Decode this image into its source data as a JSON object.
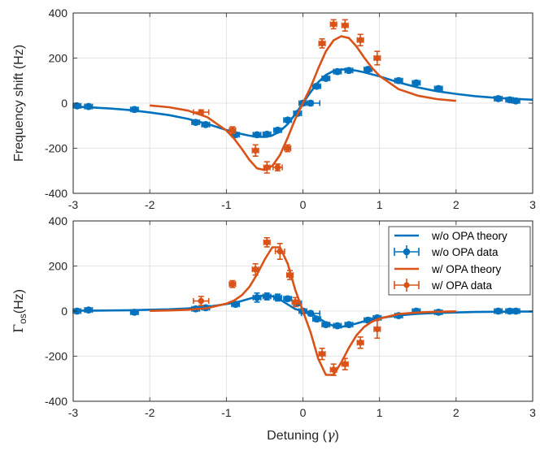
{
  "chart_data": [
    {
      "type": "scatter",
      "ylabel": "Frequency shift (Hz)",
      "xlabel": "",
      "xlim": [
        -3,
        3
      ],
      "ylim": [
        -400,
        400
      ],
      "xticks": [
        -3,
        -2,
        -1,
        0,
        1,
        2,
        3
      ],
      "yticks": [
        -400,
        -200,
        0,
        200,
        400
      ],
      "xtick_labels": [
        "-3",
        "-2",
        "-1",
        "0",
        "1",
        "2",
        "3"
      ],
      "ytick_labels": [
        "-400",
        "-200",
        "0",
        "200",
        "400"
      ],
      "grid": true,
      "series": [
        {
          "kind": "line",
          "color": "#0072BD",
          "x_range": [
            -3,
            3
          ],
          "x": [
            -3,
            -2.75,
            -2.5,
            -2.25,
            -2,
            -1.75,
            -1.5,
            -1.25,
            -1,
            -0.9,
            -0.8,
            -0.7,
            -0.6,
            -0.5,
            -0.4,
            -0.3,
            -0.2,
            -0.1,
            0,
            0.1,
            0.2,
            0.3,
            0.4,
            0.5,
            0.6,
            0.7,
            0.8,
            0.9,
            1,
            1.25,
            1.5,
            1.75,
            2,
            2.25,
            2.5,
            2.75,
            3
          ],
          "y": [
            -15,
            -19,
            -24,
            -31,
            -41,
            -53,
            -70,
            -92,
            -119,
            -128,
            -137,
            -144,
            -149,
            -150,
            -143,
            -125,
            -93,
            -49,
            0,
            49,
            93,
            125,
            143,
            150,
            149,
            144,
            137,
            128,
            119,
            92,
            70,
            53,
            41,
            31,
            24,
            19,
            15
          ]
        },
        {
          "kind": "points",
          "color": "#0072BD",
          "x": [
            -2.95,
            -2.8,
            -2.2,
            -1.4,
            -1.27,
            -0.88,
            -0.6,
            -0.47,
            -0.33,
            -0.2,
            -0.07,
            0,
            0.1,
            0.18,
            0.3,
            0.45,
            0.6,
            0.85,
            1.25,
            1.48,
            1.77,
            2.55,
            2.7,
            2.78
          ],
          "y": [
            -12,
            -15,
            -28,
            -85,
            -95,
            -140,
            -140,
            -138,
            -120,
            -75,
            -45,
            0,
            0,
            75,
            110,
            140,
            145,
            150,
            100,
            90,
            65,
            20,
            15,
            10
          ],
          "xerr": [
            0.05,
            0.05,
            0.05,
            0.05,
            0.05,
            0.05,
            0.05,
            0.05,
            0.05,
            0.05,
            0.05,
            0.05,
            0.12,
            0.05,
            0.05,
            0.05,
            0.05,
            0.05,
            0.05,
            0.05,
            0.05,
            0.05,
            0.05,
            0.05
          ],
          "yerr": [
            10,
            10,
            10,
            10,
            10,
            10,
            10,
            10,
            10,
            10,
            10,
            10,
            10,
            10,
            10,
            10,
            10,
            10,
            10,
            10,
            10,
            10,
            10,
            10
          ]
        },
        {
          "kind": "line",
          "color": "#D95319",
          "x_range": [
            -2,
            2
          ],
          "x": [
            -2,
            -1.75,
            -1.5,
            -1.25,
            -1,
            -0.9,
            -0.8,
            -0.7,
            -0.6,
            -0.5,
            -0.4,
            -0.3,
            -0.2,
            -0.1,
            0,
            0.1,
            0.2,
            0.3,
            0.4,
            0.5,
            0.6,
            0.7,
            0.8,
            0.9,
            1,
            1.25,
            1.5,
            1.75,
            2
          ],
          "y": [
            -10,
            -18,
            -33,
            -62,
            -121,
            -157,
            -202,
            -251,
            -289,
            -297,
            -279,
            -230,
            -154,
            -70,
            0,
            70,
            154,
            230,
            279,
            297,
            289,
            251,
            202,
            157,
            121,
            62,
            33,
            18,
            10
          ]
        },
        {
          "kind": "points",
          "color": "#D95319",
          "x": [
            -1.33,
            -0.92,
            -0.62,
            -0.47,
            -0.33,
            -0.2,
            0.25,
            0.4,
            0.55,
            0.75,
            0.97
          ],
          "y": [
            -40,
            -120,
            -210,
            -285,
            -285,
            -200,
            265,
            350,
            345,
            280,
            200
          ],
          "xerr": [
            0.1,
            0.04,
            0.04,
            0.04,
            0.06,
            0.04,
            0.04,
            0.04,
            0.04,
            0.04,
            0.04
          ],
          "yerr": [
            10,
            15,
            25,
            25,
            15,
            15,
            20,
            20,
            25,
            25,
            30
          ]
        }
      ]
    },
    {
      "type": "scatter",
      "ylabel": "Γos(Hz)",
      "ylabel_main": "Γ",
      "ylabel_sub": "os",
      "ylabel_tail": "(Hz)",
      "xlabel": "Detuning (γ)",
      "xlabel_main": "Detuning (",
      "xlabel_symbol": "γ",
      "xlabel_tail": ")",
      "xlim": [
        -3,
        3
      ],
      "ylim": [
        -400,
        400
      ],
      "xticks": [
        -3,
        -2,
        -1,
        0,
        1,
        2,
        3
      ],
      "yticks": [
        -400,
        -200,
        0,
        200,
        400
      ],
      "xtick_labels": [
        "-3",
        "-2",
        "-1",
        "0",
        "1",
        "2",
        "3"
      ],
      "ytick_labels": [
        "-400",
        "-200",
        "0",
        "200",
        "400"
      ],
      "grid": true,
      "legend_position": "top-right",
      "legend": [
        "w/o OPA theory",
        "w/o OPA data",
        "w/ OPA theory",
        "w/ OPA data"
      ],
      "series": [
        {
          "kind": "line",
          "color": "#0072BD",
          "x_range": [
            -3,
            3
          ],
          "x": [
            -3,
            -2.75,
            -2.5,
            -2.25,
            -2,
            -1.75,
            -1.5,
            -1.25,
            -1,
            -0.9,
            -0.8,
            -0.7,
            -0.6,
            -0.5,
            -0.4,
            -0.3,
            -0.2,
            -0.1,
            0,
            0.1,
            0.2,
            0.3,
            0.4,
            0.5,
            0.6,
            0.7,
            0.8,
            0.9,
            1,
            1.25,
            1.5,
            1.75,
            2,
            2.25,
            2.5,
            2.75,
            3
          ],
          "y": [
            2,
            2,
            3,
            4,
            6,
            8,
            12,
            19,
            31,
            37,
            45,
            55,
            64,
            70,
            66,
            51,
            30,
            9,
            0,
            -9,
            -30,
            -51,
            -66,
            -70,
            -64,
            -55,
            -45,
            -37,
            -31,
            -19,
            -12,
            -8,
            -6,
            -4,
            -3,
            -2,
            -2
          ]
        },
        {
          "kind": "points",
          "color": "#0072BD",
          "x": [
            -2.95,
            -2.8,
            -2.2,
            -1.4,
            -1.27,
            -0.88,
            -0.6,
            -0.47,
            -0.33,
            -0.2,
            -0.07,
            0,
            0.1,
            0.18,
            0.3,
            0.45,
            0.6,
            0.85,
            0.97,
            1.25,
            1.48,
            1.77,
            2.55,
            2.7,
            2.78
          ],
          "y": [
            0,
            5,
            -5,
            10,
            15,
            30,
            60,
            65,
            60,
            55,
            35,
            0,
            -10,
            -35,
            -60,
            -65,
            -60,
            -40,
            -30,
            -20,
            0,
            -5,
            0,
            0,
            0
          ],
          "xerr": [
            0.05,
            0.05,
            0.05,
            0.05,
            0.05,
            0.05,
            0.05,
            0.05,
            0.05,
            0.05,
            0.05,
            0.05,
            0.12,
            0.05,
            0.05,
            0.05,
            0.05,
            0.05,
            0.05,
            0.05,
            0.05,
            0.05,
            0.05,
            0.05,
            0.05
          ],
          "yerr": [
            10,
            10,
            10,
            10,
            10,
            10,
            20,
            15,
            15,
            10,
            10,
            10,
            10,
            10,
            10,
            10,
            10,
            10,
            10,
            10,
            10,
            10,
            10,
            10,
            10
          ]
        },
        {
          "kind": "line",
          "color": "#D95319",
          "x_range": [
            -2,
            2
          ],
          "x": [
            -2,
            -1.75,
            -1.5,
            -1.25,
            -1,
            -0.9,
            -0.8,
            -0.7,
            -0.6,
            -0.5,
            -0.4,
            -0.3,
            -0.2,
            -0.1,
            0,
            0.1,
            0.2,
            0.3,
            0.4,
            0.5,
            0.6,
            0.7,
            0.8,
            0.9,
            1,
            1.25,
            1.5,
            1.75,
            2
          ],
          "y": [
            1,
            3,
            6,
            13,
            33,
            47,
            70,
            107,
            163,
            228,
            283,
            283,
            211,
            94,
            0,
            -94,
            -211,
            -283,
            -283,
            -228,
            -163,
            -107,
            -70,
            -47,
            -33,
            -13,
            -6,
            -3,
            -1
          ]
        },
        {
          "kind": "points",
          "color": "#D95319",
          "x": [
            -1.33,
            -0.92,
            -0.62,
            -0.47,
            -0.3,
            -0.17,
            -0.1,
            0.25,
            0.4,
            0.55,
            0.75,
            0.97
          ],
          "y": [
            45,
            120,
            185,
            305,
            265,
            160,
            40,
            -190,
            -260,
            -235,
            -140,
            -80
          ],
          "xerr": [
            0.1,
            0.04,
            0.04,
            0.04,
            0.06,
            0.04,
            0.04,
            0.04,
            0.04,
            0.04,
            0.04,
            0.04
          ],
          "yerr": [
            20,
            15,
            25,
            20,
            35,
            20,
            20,
            25,
            25,
            25,
            25,
            40
          ]
        }
      ]
    }
  ]
}
